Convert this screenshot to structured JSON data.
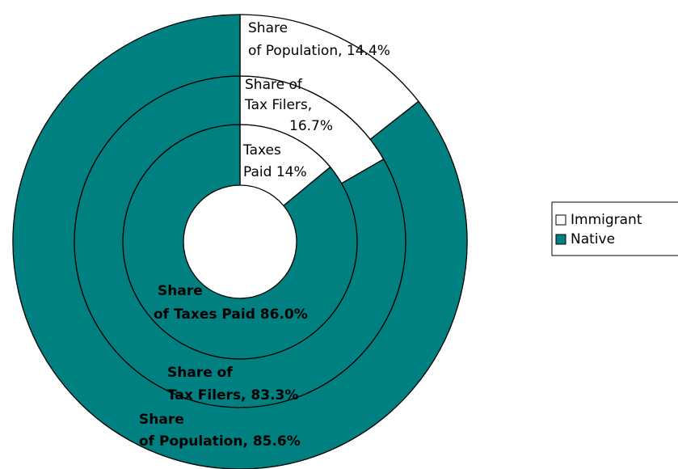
{
  "chart_data": {
    "type": "multi-ring-donut",
    "categories": [
      "Immigrant",
      "Native"
    ],
    "colors": [
      "#ffffff",
      "#008080"
    ],
    "legend": "right",
    "rings": [
      {
        "values": [
          14,
          86.0
        ],
        "value_labels": [
          [
            "Taxes",
            "Paid 14%"
          ],
          [
            "Share",
            "of Taxes Paid 86.0%"
          ]
        ]
      },
      {
        "values": [
          16.7,
          83.3
        ],
        "value_labels": [
          [
            "Share of",
            "Tax Filers,",
            "16.7%"
          ],
          [
            "Share of",
            "Tax Filers, 83.3%"
          ]
        ]
      },
      {
        "values": [
          14.4,
          85.6
        ],
        "value_labels": [
          [
            "Share",
            "of Population, 14.4%"
          ],
          [
            "Share",
            "of Population, 85.6%"
          ]
        ]
      }
    ]
  }
}
